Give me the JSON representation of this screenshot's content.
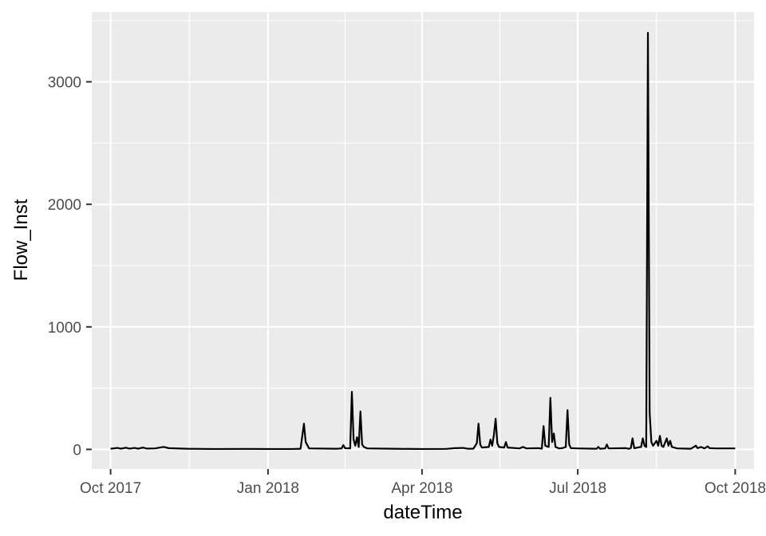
{
  "chart_data": {
    "type": "line",
    "title": "",
    "xlabel": "dateTime",
    "ylabel": "Flow_Inst",
    "x_ticks": [
      "Oct 2017",
      "Jan 2018",
      "Apr 2018",
      "Jul 2018",
      "Oct 2018"
    ],
    "x_tick_dates": [
      "2017-10-01",
      "2018-01-01",
      "2018-04-01",
      "2018-07-01",
      "2018-10-01"
    ],
    "y_ticks": [
      "0",
      "1000",
      "2000",
      "3000"
    ],
    "y_tick_values": [
      0,
      1000,
      2000,
      3000
    ],
    "xlim": [
      "2017-09-20",
      "2018-10-12"
    ],
    "ylim": [
      -160,
      3570
    ],
    "grid": true,
    "legend": "none",
    "colors": {
      "panel": "#ebebeb",
      "grid": "#ffffff",
      "line": "#000000"
    },
    "series": [
      {
        "values": [
          [
            "2017-10-01",
            5
          ],
          [
            "2017-10-05",
            12
          ],
          [
            "2017-10-07",
            6
          ],
          [
            "2017-10-10",
            14
          ],
          [
            "2017-10-12",
            6
          ],
          [
            "2017-10-15",
            12
          ],
          [
            "2017-10-17",
            6
          ],
          [
            "2017-10-20",
            15
          ],
          [
            "2017-10-22",
            7
          ],
          [
            "2017-10-27",
            8
          ],
          [
            "2017-11-01",
            20
          ],
          [
            "2017-11-04",
            10
          ],
          [
            "2017-11-15",
            5
          ],
          [
            "2017-12-01",
            3
          ],
          [
            "2017-12-20",
            4
          ],
          [
            "2018-01-01",
            3
          ],
          [
            "2018-01-15",
            3
          ],
          [
            "2018-01-20",
            5
          ],
          [
            "2018-01-22",
            210
          ],
          [
            "2018-01-23",
            60
          ],
          [
            "2018-01-25",
            8
          ],
          [
            "2018-02-10",
            5
          ],
          [
            "2018-02-13",
            8
          ],
          [
            "2018-02-14",
            35
          ],
          [
            "2018-02-15",
            10
          ],
          [
            "2018-02-18",
            8
          ],
          [
            "2018-02-19",
            470
          ],
          [
            "2018-02-20",
            80
          ],
          [
            "2018-02-21",
            30
          ],
          [
            "2018-02-22",
            100
          ],
          [
            "2018-02-23",
            20
          ],
          [
            "2018-02-24",
            310
          ],
          [
            "2018-02-25",
            40
          ],
          [
            "2018-02-26",
            20
          ],
          [
            "2018-02-28",
            8
          ],
          [
            "2018-03-15",
            5
          ],
          [
            "2018-04-01",
            3
          ],
          [
            "2018-04-15",
            4
          ],
          [
            "2018-04-20",
            10
          ],
          [
            "2018-04-25",
            12
          ],
          [
            "2018-04-28",
            5
          ],
          [
            "2018-05-01",
            6
          ],
          [
            "2018-05-03",
            50
          ],
          [
            "2018-05-04",
            210
          ],
          [
            "2018-05-05",
            40
          ],
          [
            "2018-05-06",
            15
          ],
          [
            "2018-05-10",
            20
          ],
          [
            "2018-05-11",
            80
          ],
          [
            "2018-05-12",
            30
          ],
          [
            "2018-05-13",
            120
          ],
          [
            "2018-05-14",
            250
          ],
          [
            "2018-05-15",
            50
          ],
          [
            "2018-05-16",
            20
          ],
          [
            "2018-05-19",
            15
          ],
          [
            "2018-05-20",
            60
          ],
          [
            "2018-05-21",
            15
          ],
          [
            "2018-05-28",
            8
          ],
          [
            "2018-05-30",
            20
          ],
          [
            "2018-06-01",
            8
          ],
          [
            "2018-06-08",
            10
          ],
          [
            "2018-06-10",
            6
          ],
          [
            "2018-06-11",
            190
          ],
          [
            "2018-06-12",
            30
          ],
          [
            "2018-06-14",
            20
          ],
          [
            "2018-06-15",
            420
          ],
          [
            "2018-06-16",
            60
          ],
          [
            "2018-06-17",
            130
          ],
          [
            "2018-06-18",
            20
          ],
          [
            "2018-06-20",
            8
          ],
          [
            "2018-06-22",
            10
          ],
          [
            "2018-06-24",
            20
          ],
          [
            "2018-06-25",
            320
          ],
          [
            "2018-06-26",
            40
          ],
          [
            "2018-06-27",
            10
          ],
          [
            "2018-07-01",
            8
          ],
          [
            "2018-07-12",
            5
          ],
          [
            "2018-07-13",
            20
          ],
          [
            "2018-07-14",
            5
          ],
          [
            "2018-07-17",
            8
          ],
          [
            "2018-07-18",
            40
          ],
          [
            "2018-07-19",
            8
          ],
          [
            "2018-07-29",
            10
          ],
          [
            "2018-07-31",
            5
          ],
          [
            "2018-08-01",
            10
          ],
          [
            "2018-08-02",
            90
          ],
          [
            "2018-08-03",
            10
          ],
          [
            "2018-08-07",
            20
          ],
          [
            "2018-08-08",
            90
          ],
          [
            "2018-08-09",
            30
          ],
          [
            "2018-08-10",
            20
          ],
          [
            "2018-08-11",
            3400
          ],
          [
            "2018-08-12",
            300
          ],
          [
            "2018-08-13",
            60
          ],
          [
            "2018-08-14",
            30
          ],
          [
            "2018-08-16",
            70
          ],
          [
            "2018-08-17",
            30
          ],
          [
            "2018-08-18",
            110
          ],
          [
            "2018-08-19",
            30
          ],
          [
            "2018-08-20",
            20
          ],
          [
            "2018-08-22",
            90
          ],
          [
            "2018-08-23",
            30
          ],
          [
            "2018-08-24",
            70
          ],
          [
            "2018-08-25",
            20
          ],
          [
            "2018-08-28",
            8
          ],
          [
            "2018-09-05",
            5
          ],
          [
            "2018-09-08",
            30
          ],
          [
            "2018-09-09",
            10
          ],
          [
            "2018-09-11",
            20
          ],
          [
            "2018-09-13",
            8
          ],
          [
            "2018-09-15",
            25
          ],
          [
            "2018-09-16",
            10
          ],
          [
            "2018-09-20",
            8
          ],
          [
            "2018-10-01",
            8
          ]
        ]
      }
    ]
  }
}
